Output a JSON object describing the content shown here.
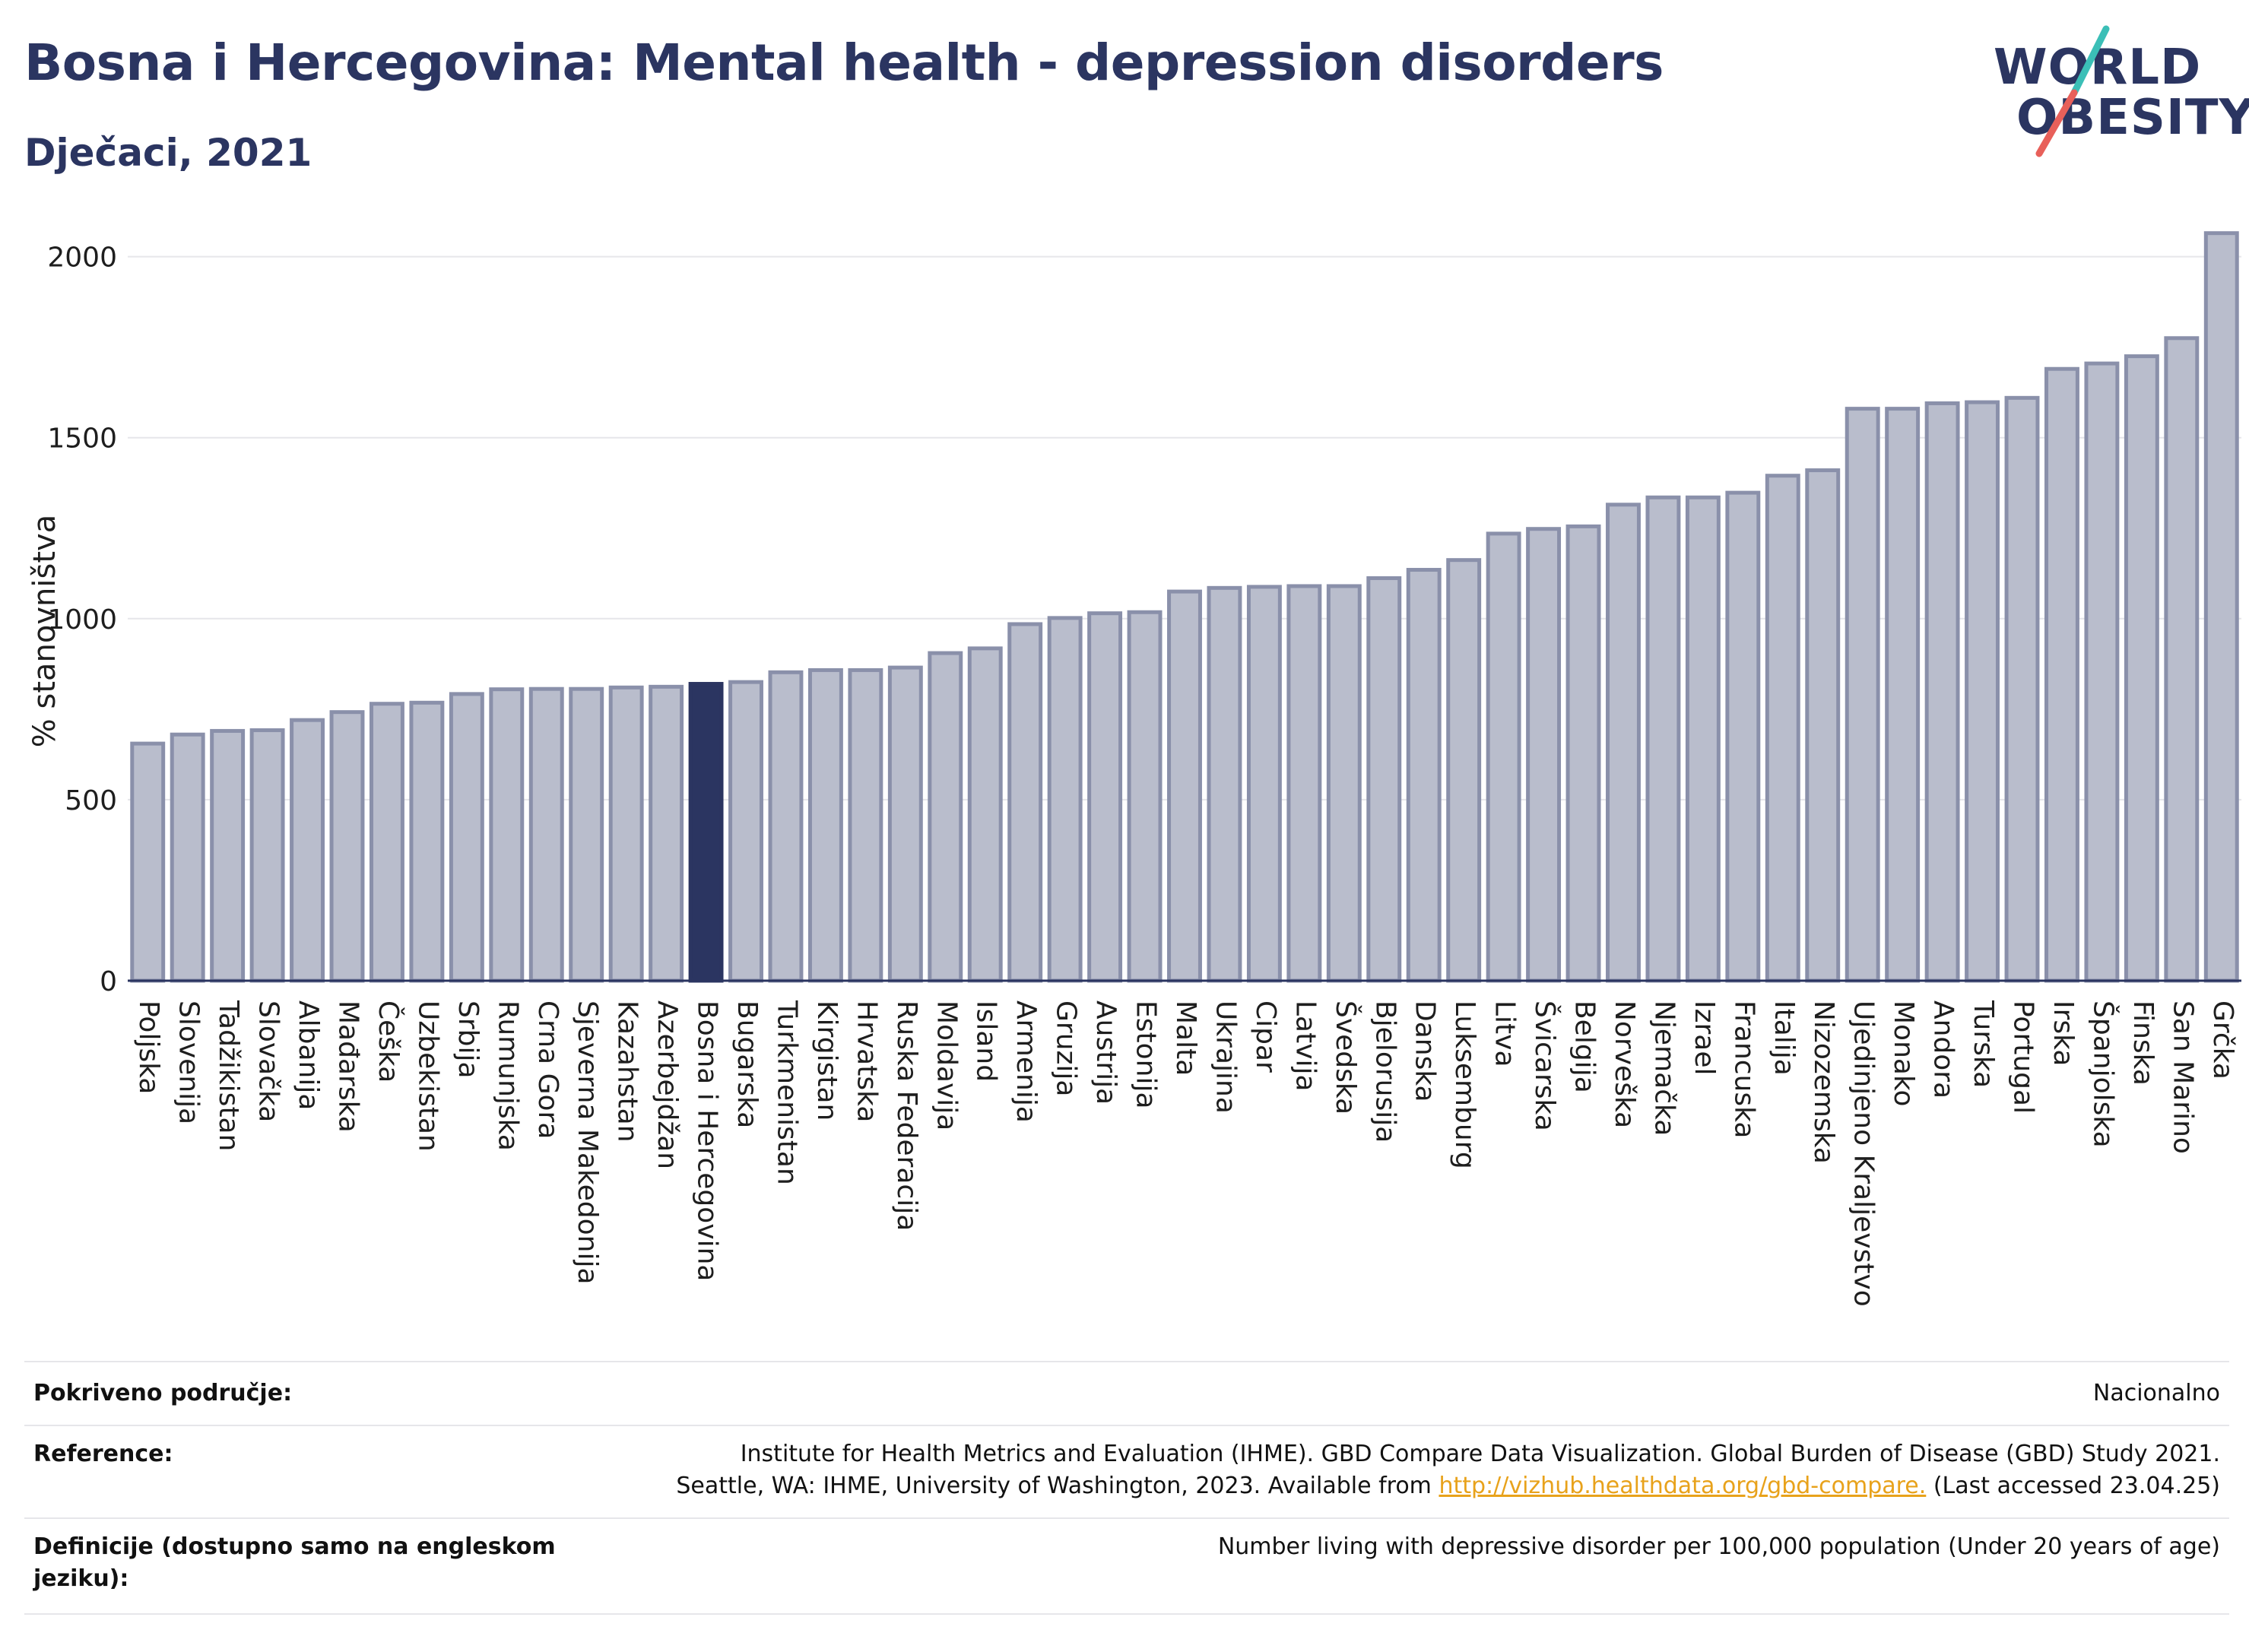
{
  "header": {
    "title": "Bosna i Hercegovina: Mental health - depression disorders",
    "subtitle": "Dječaci, 2021"
  },
  "logo": {
    "line1": "WORLD",
    "line2": "OBESITY"
  },
  "colors": {
    "bar": "#b9bdcc",
    "bar_edge": "#8a90aa",
    "highlight": "#2b3561",
    "grid": "#e6e6ea",
    "logo_teal": "#3bbfb7",
    "logo_red": "#e8605a"
  },
  "chart_data": {
    "type": "bar",
    "ylabel": "% stanovništva",
    "ylim": [
      0,
      2100
    ],
    "yticks": [
      0,
      500,
      1000,
      1500,
      2000
    ],
    "grid": true,
    "highlight": "Bosna i Hercegovina",
    "categories": [
      "Poljska",
      "Slovenija",
      "Tadžikistan",
      "Slovačka",
      "Albanija",
      "Mađarska",
      "Češka",
      "Uzbekistan",
      "Srbija",
      "Rumunjska",
      "Crna Gora",
      "Sjeverna Makedonija",
      "Kazahstan",
      "Azerbejdžan",
      "Bosna i Hercegovina",
      "Bugarska",
      "Turkmenistan",
      "Kirgistan",
      "Hrvatska",
      "Ruska Federacija",
      "Moldavija",
      "Island",
      "Armenija",
      "Gruzija",
      "Austrija",
      "Estonija",
      "Malta",
      "Ukrajina",
      "Cipar",
      "Latvija",
      "Švedska",
      "Bjelorusija",
      "Danska",
      "Luksemburg",
      "Litva",
      "Švicarska",
      "Belgija",
      "Norveška",
      "Njemačka",
      "Izrael",
      "Francuska",
      "Italija",
      "Nizozemska",
      "Ujedinjeno Kraljevstvo",
      "Monako",
      "Andora",
      "Turska",
      "Portugal",
      "Irska",
      "Španjolska",
      "Finska",
      "San Marino",
      "Grčka"
    ],
    "values": [
      655,
      680,
      690,
      692,
      720,
      742,
      765,
      768,
      792,
      805,
      806,
      806,
      810,
      812,
      820,
      825,
      852,
      858,
      858,
      865,
      905,
      918,
      985,
      1002,
      1015,
      1018,
      1075,
      1085,
      1088,
      1090,
      1090,
      1112,
      1135,
      1162,
      1235,
      1248,
      1255,
      1315,
      1335,
      1335,
      1348,
      1395,
      1410,
      1580,
      1580,
      1595,
      1598,
      1610,
      1690,
      1705,
      1725,
      1775,
      2065
    ]
  },
  "footer": {
    "rows": [
      {
        "label": "Pokriveno područje:",
        "value": "Nacionalno"
      },
      {
        "label": "Reference:",
        "value_line1": "Institute for Health Metrics and Evaluation (IHME). GBD Compare Data Visualization. Global Burden of Disease (GBD) Study 2021.",
        "value_line2_pre": "Seattle, WA: IHME, University of Washington, 2023. Available from ",
        "value_link": "http://vizhub.healthdata.org/gbd-compare.",
        "value_line2_post": " (Last accessed 23.04.25)"
      },
      {
        "label": "Definicije (dostupno samo na engleskom jeziku):",
        "value": "Number living with depressive disorder per 100,000 population (Under 20 years of age)"
      }
    ]
  }
}
